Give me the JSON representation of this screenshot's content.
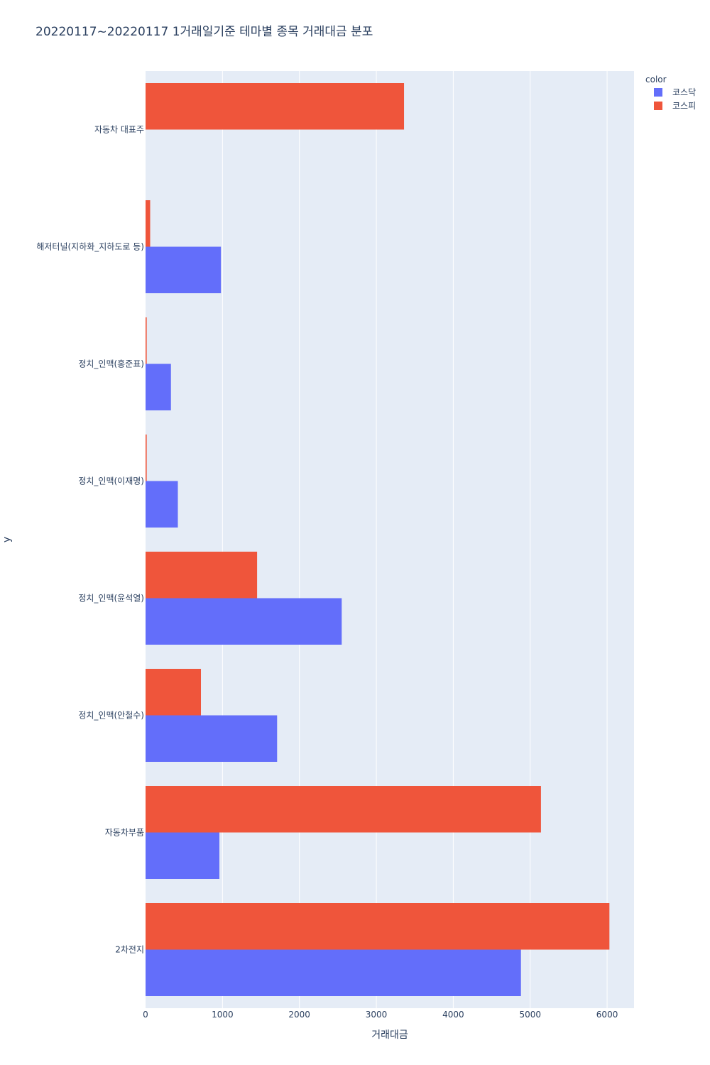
{
  "chart_data": {
    "type": "bar",
    "orientation": "horizontal",
    "barmode": "group",
    "title": "20220117~20220117 1거래일기준 테마별 종목 거래대금 분포",
    "xlabel": "거래대금",
    "ylabel": "y",
    "xlim": [
      0,
      6350
    ],
    "xticks": [
      0,
      1000,
      2000,
      3000,
      4000,
      5000,
      6000
    ],
    "grid": true,
    "legend_title": "color",
    "legend_position": "top-right",
    "categories": [
      "자동차 대표주",
      "해저터널(지하화_지하도로 등)",
      "정치_인맥(홍준표)",
      "정치_인맥(이재명)",
      "정치_인맥(윤석열)",
      "정치_인맥(안철수)",
      "자동차부품",
      "2차전지"
    ],
    "series": [
      {
        "name": "코스닥",
        "color": "#636efa",
        "values": [
          0,
          980,
          330,
          420,
          2550,
          1710,
          960,
          4880
        ]
      },
      {
        "name": "코스피",
        "color": "#ef553b",
        "values": [
          3360,
          60,
          15,
          15,
          1450,
          720,
          5140,
          6030
        ]
      }
    ]
  }
}
